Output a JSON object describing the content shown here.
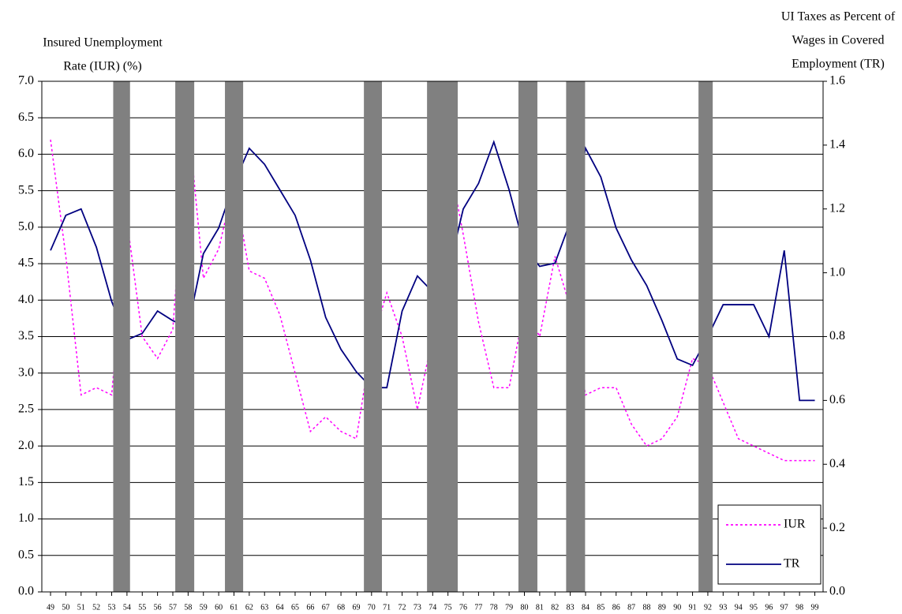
{
  "chart_data": {
    "type": "line",
    "y_label": [
      "Insured Unemployment",
      "Rate (IUR) (%)"
    ],
    "y2_label": [
      "UI Taxes as Percent of",
      "Wages in Covered",
      "Employment (TR)"
    ],
    "x": [
      49,
      50,
      51,
      52,
      53,
      54,
      55,
      56,
      57,
      58,
      59,
      60,
      61,
      62,
      63,
      64,
      65,
      66,
      67,
      68,
      69,
      70,
      71,
      72,
      73,
      74,
      75,
      76,
      77,
      78,
      79,
      80,
      81,
      82,
      83,
      84,
      85,
      86,
      87,
      88,
      89,
      90,
      91,
      92,
      93,
      94,
      95,
      96,
      97,
      98,
      99
    ],
    "xlim": [
      48.43,
      99.54
    ],
    "xticks": [
      49,
      50,
      51,
      52,
      53,
      54,
      55,
      56,
      57,
      58,
      59,
      60,
      61,
      62,
      63,
      64,
      65,
      66,
      67,
      68,
      69,
      70,
      71,
      72,
      73,
      74,
      75,
      76,
      77,
      78,
      79,
      80,
      81,
      82,
      83,
      84,
      85,
      86,
      87,
      88,
      89,
      90,
      91,
      92,
      93,
      94,
      95,
      96,
      97,
      98,
      99
    ],
    "ylim": [
      0,
      7
    ],
    "yticks": [
      {
        "value": 0,
        "label": "0.0"
      },
      0.5,
      {
        "value": 1,
        "label": "1.0"
      },
      1.5,
      {
        "value": 2,
        "label": "2.0"
      },
      2.5,
      {
        "value": 3,
        "label": "3.0"
      },
      3.5,
      {
        "value": 4,
        "label": "4.0"
      },
      4.5,
      {
        "value": 5,
        "label": "5.0"
      },
      5.5,
      {
        "value": 6,
        "label": "6.0"
      },
      6.5,
      {
        "value": 7,
        "label": "7.0"
      }
    ],
    "y2lim": [
      0,
      1.6
    ],
    "y2ticks": [
      {
        "value": 0,
        "label": "0.0"
      },
      0.2,
      0.4,
      0.6,
      0.8,
      {
        "value": 1,
        "label": "1.0"
      },
      1.2,
      1.4,
      1.6
    ],
    "grid": true,
    "legend": "lower right",
    "shaded_periods": {
      "color": "#808080",
      "ranges": [
        [
          53.1,
          54.2
        ],
        [
          57.16,
          58.4
        ],
        [
          60.41,
          61.6
        ],
        [
          69.5,
          70.68
        ],
        [
          73.63,
          75.64
        ],
        [
          79.61,
          80.85
        ],
        [
          82.73,
          83.97
        ],
        [
          91.39,
          92.32
        ]
      ]
    },
    "series": [
      {
        "name": "IUR",
        "color": "#ff00ff",
        "dash": true,
        "values": [
          6.2,
          4.6,
          2.7,
          2.8,
          2.7,
          5.1,
          3.5,
          3.2,
          3.6,
          6.5,
          4.3,
          4.7,
          5.6,
          4.4,
          4.3,
          3.8,
          3.0,
          2.2,
          2.4,
          2.2,
          2.1,
          3.4,
          4.1,
          3.5,
          2.5,
          3.5,
          6.0,
          4.9,
          3.7,
          2.8,
          2.8,
          3.9,
          3.5,
          4.6,
          3.9,
          2.7,
          2.8,
          2.8,
          2.3,
          2.0,
          2.1,
          2.4,
          3.2,
          3.1,
          2.6,
          2.1,
          2.0,
          1.9,
          1.8,
          1.8,
          1.8
        ]
      },
      {
        "name": "TR",
        "color": "#000080",
        "axis": "y2",
        "values": [
          1.07,
          1.18,
          1.2,
          1.08,
          0.91,
          0.79,
          0.81,
          0.88,
          0.85,
          0.83,
          1.06,
          1.14,
          1.28,
          1.39,
          1.34,
          1.26,
          1.18,
          1.04,
          0.86,
          0.76,
          0.69,
          0.64,
          0.64,
          0.88,
          0.99,
          0.94,
          1.0,
          1.2,
          1.28,
          1.41,
          1.26,
          1.08,
          1.02,
          1.03,
          1.16,
          1.39,
          1.3,
          1.14,
          1.04,
          0.96,
          0.85,
          0.73,
          0.71,
          0.8,
          0.9,
          0.9,
          0.9,
          0.8,
          1.07,
          0.6,
          0.6
        ]
      }
    ]
  }
}
